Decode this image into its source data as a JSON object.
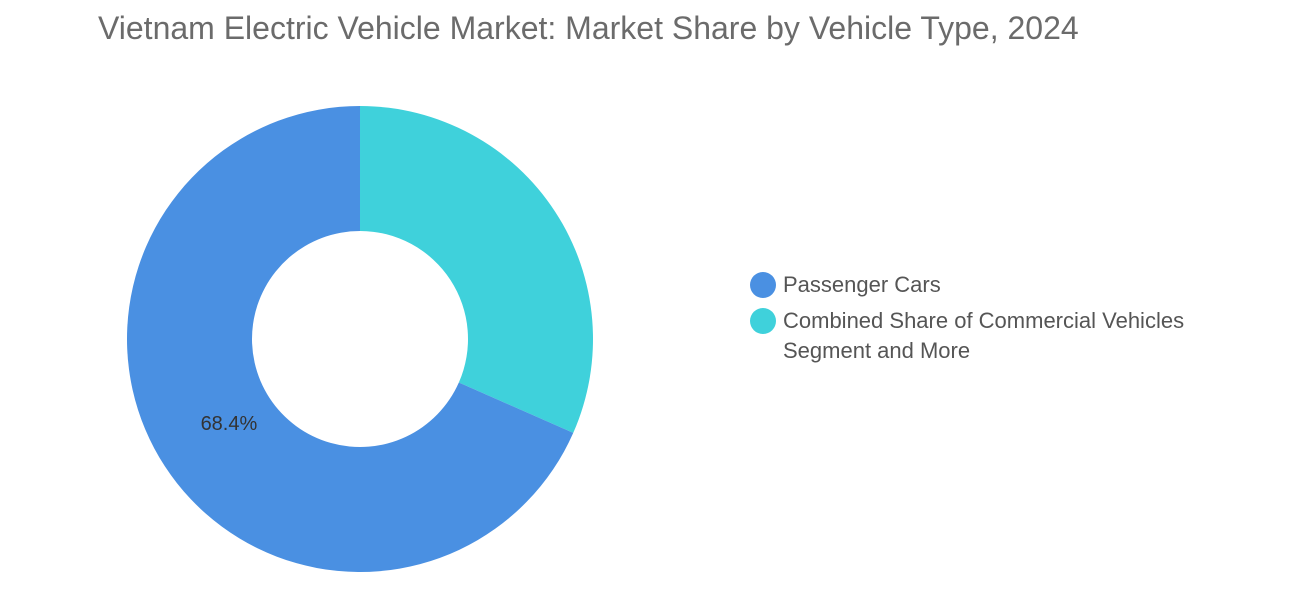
{
  "title": "Vietnam Electric Vehicle Market: Market Share by Vehicle Type, 2024",
  "colors": {
    "passenger_cars": "#4a90e2",
    "commercial_and_more": "#3fd1db"
  },
  "chart_data": {
    "type": "pie",
    "donut": true,
    "title": "Vietnam Electric Vehicle Market: Market Share by Vehicle Type, 2024",
    "legend_position": "right",
    "slices": [
      {
        "label": "Passenger Cars",
        "value": 68.4,
        "color": "#4a90e2",
        "data_label": "68.4%"
      },
      {
        "label": "Combined Share of Commercial Vehicles Segment and More",
        "value": 31.6,
        "color": "#3fd1db",
        "data_label": ""
      }
    ]
  }
}
